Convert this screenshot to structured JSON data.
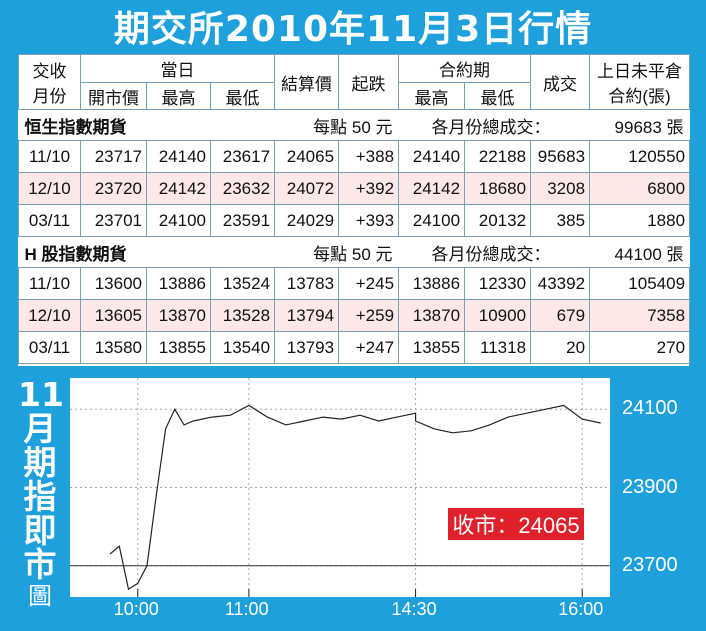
{
  "title": "期交所2010年11月3日行情",
  "table": {
    "headers": {
      "month_line1": "交收",
      "month_line2": "月份",
      "same_day": "當日",
      "open": "開市價",
      "high": "最高",
      "low": "最低",
      "settle": "結算價",
      "change": "起跌",
      "contract_period": "合約期",
      "period_high": "最高",
      "period_low": "最低",
      "volume": "成交",
      "oi_line1": "上日未平倉",
      "oi_line2": "合約(張)"
    },
    "sections": [
      {
        "name": "恒生指數期貨",
        "per_point": "每點 50 元",
        "volume_label": "各月份總成交：",
        "volume_total": "99683 張",
        "rows": [
          [
            "11/10",
            "23717",
            "24140",
            "23617",
            "24065",
            "+388",
            "24140",
            "22188",
            "95683",
            "120550"
          ],
          [
            "12/10",
            "23720",
            "24142",
            "23632",
            "24072",
            "+392",
            "24142",
            "18680",
            "3208",
            "6800"
          ],
          [
            "03/11",
            "23701",
            "24100",
            "23591",
            "24029",
            "+393",
            "24100",
            "20132",
            "385",
            "1880"
          ]
        ]
      },
      {
        "name": "H 股指數期貨",
        "per_point": "每點 50 元",
        "volume_label": "各月份總成交：",
        "volume_total": "44100 張",
        "rows": [
          [
            "11/10",
            "13600",
            "13886",
            "13524",
            "13783",
            "+245",
            "13886",
            "12330",
            "43392",
            "105409"
          ],
          [
            "12/10",
            "13605",
            "13870",
            "13528",
            "13794",
            "+259",
            "13870",
            "10900",
            "679",
            "7358"
          ],
          [
            "03/11",
            "13580",
            "13855",
            "13540",
            "13793",
            "+247",
            "13855",
            "11318",
            "20",
            "270"
          ]
        ]
      }
    ]
  },
  "sidebar_label": [
    "11",
    "月",
    "期",
    "指",
    "即",
    "市",
    "圖"
  ],
  "close_label": "收市：24065",
  "colors": {
    "frame": "#1ea0dc",
    "accent_red": "#e0202a",
    "row_pink": "#fde8e8"
  },
  "chart_data": {
    "type": "line",
    "title": "11月期指即市圖",
    "x_ticks": [
      "10:00",
      "11:00",
      "14:30",
      "16:00"
    ],
    "y_ticks": [
      24100,
      23900,
      23700
    ],
    "ylim": [
      23620,
      24180
    ],
    "grid": true,
    "reference_line": 23700,
    "close": 24065,
    "series": [
      {
        "x": [
          "09:45",
          "09:50",
          "09:55",
          "10:00",
          "10:05",
          "10:10",
          "10:15",
          "10:20",
          "10:25",
          "10:30",
          "10:40",
          "10:50",
          "11:00",
          "11:10",
          "11:20",
          "11:30",
          "11:40",
          "11:50",
          "12:00",
          "12:10",
          "12:20",
          "12:30",
          "14:30",
          "14:40",
          "14:50",
          "15:00",
          "15:10",
          "15:20",
          "15:30",
          "15:40",
          "15:50",
          "16:00",
          "16:10"
        ],
        "values": [
          23730,
          23750,
          23640,
          23655,
          23700,
          23880,
          24050,
          24100,
          24060,
          24070,
          24080,
          24085,
          24110,
          24080,
          24060,
          24070,
          24080,
          24075,
          24085,
          24070,
          24080,
          24090,
          24070,
          24050,
          24040,
          24045,
          24060,
          24080,
          24090,
          24100,
          24110,
          24075,
          24065
        ]
      }
    ]
  }
}
